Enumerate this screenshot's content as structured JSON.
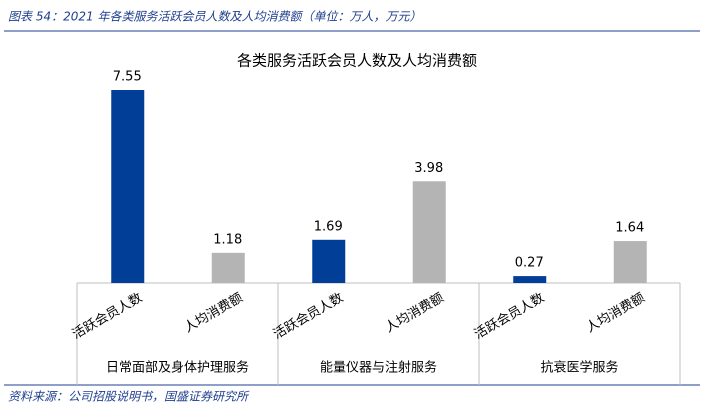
{
  "chart_data": {
    "type": "bar",
    "caption": "图表 54：2021 年各类服务活跃会员人数及人均消费额（单位：万人，万元）",
    "title": "各类服务活跃会员人数及人均消费额",
    "groups": [
      "日常面部及身体护理服务",
      "能量仪器与注射服务",
      "抗衰医学服务"
    ],
    "series": [
      {
        "name": "活跃会员人数",
        "color": "#003e98",
        "values": [
          7.55,
          1.69,
          0.27
        ]
      },
      {
        "name": "人均消费额",
        "color": "#b4b4b4",
        "values": [
          1.18,
          3.98,
          1.64
        ]
      }
    ],
    "source": "资料来源：公司招股说明书，国盛证券研究所"
  }
}
